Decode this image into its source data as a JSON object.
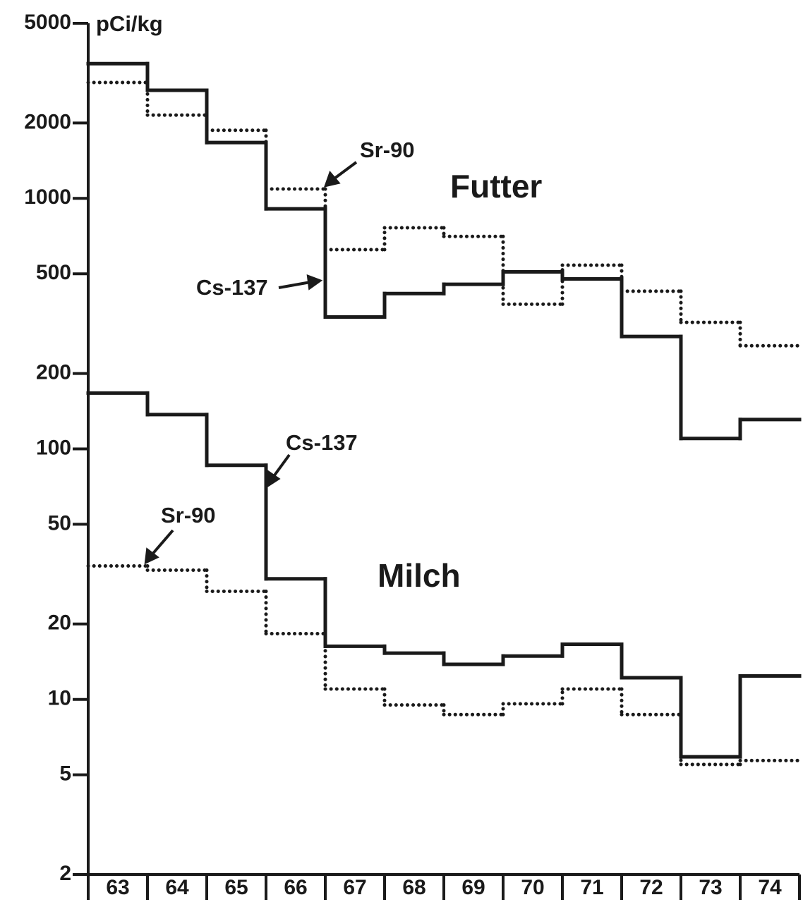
{
  "chart_data": {
    "type": "step",
    "y_label": "pCi/kg",
    "log_y": true,
    "categories": [
      "63",
      "64",
      "65",
      "66",
      "67",
      "68",
      "69",
      "70",
      "71",
      "72",
      "73",
      "74"
    ],
    "ylim": [
      2,
      5000
    ],
    "yticks": [
      2,
      5,
      10,
      20,
      50,
      100,
      200,
      500,
      1000,
      2000,
      5000
    ],
    "groups": [
      "Futter",
      "Milch"
    ],
    "series": [
      {
        "name": "Sr-90",
        "group": 0,
        "style": "dotted",
        "color": "#1a1a1a",
        "values": [
          2900,
          2150,
          1870,
          1090,
          624,
          763,
          705,
          378,
          541,
          426,
          320,
          258
        ]
      },
      {
        "name": "Cs-137",
        "group": 0,
        "style": "solid",
        "color": "#1a1a1a",
        "values": [
          3450,
          2700,
          1670,
          908,
          336,
          417,
          454,
          509,
          477,
          281,
          110,
          131
        ]
      },
      {
        "name": "Cs-137",
        "group": 1,
        "style": "solid",
        "color": "#1a1a1a",
        "values": [
          167,
          137,
          86,
          30.3,
          16.3,
          15.3,
          13.8,
          14.9,
          16.6,
          12.2,
          5.9,
          12.4
        ]
      },
      {
        "name": "Sr-90",
        "group": 1,
        "style": "dotted",
        "color": "#1a1a1a",
        "values": [
          34.1,
          32.8,
          27.0,
          18.3,
          11.0,
          9.5,
          8.7,
          9.6,
          11.0,
          8.7,
          5.5,
          5.7
        ]
      }
    ]
  }
}
